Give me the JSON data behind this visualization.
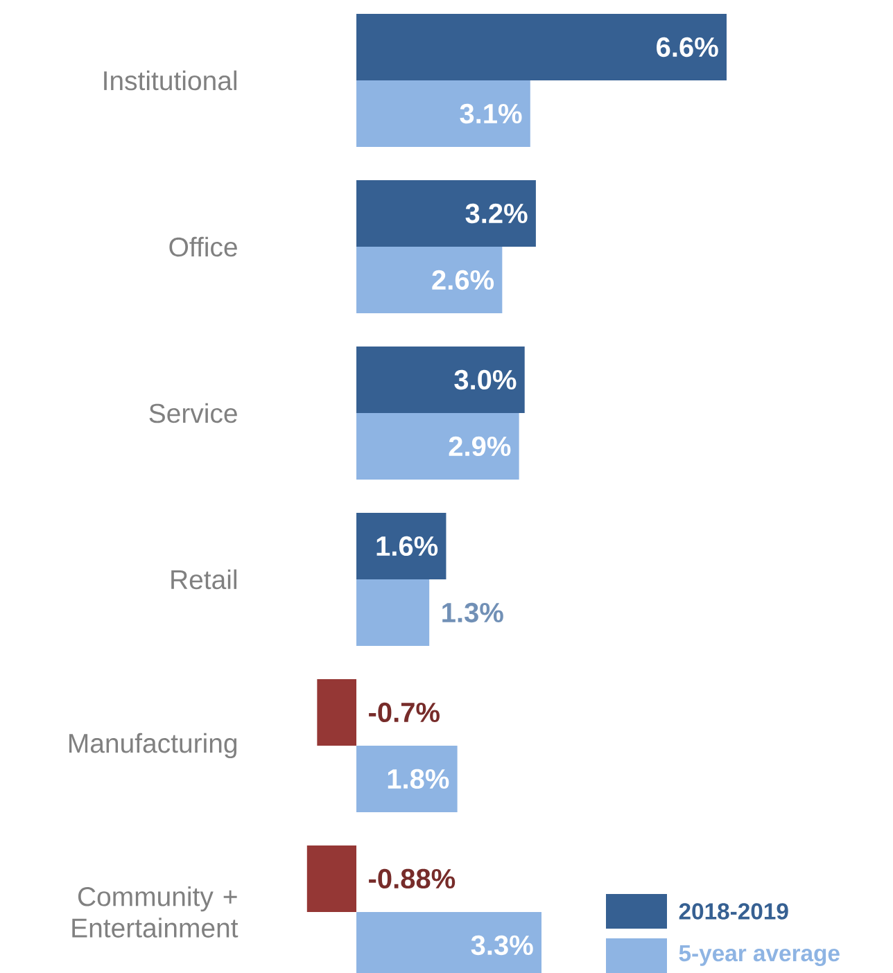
{
  "chart_data": {
    "type": "bar",
    "orientation": "horizontal",
    "categories": [
      "Institutional",
      "Office",
      "Service",
      "Retail",
      "Manufacturing",
      "Community + Entertainment"
    ],
    "series": [
      {
        "name": "2018-2019",
        "color": "#366092",
        "colors": [
          "#366092",
          "#366092",
          "#366092",
          "#366092",
          "#953735",
          "#953735"
        ],
        "values": [
          6.6,
          3.2,
          3.0,
          1.6,
          -0.7,
          -0.88
        ],
        "value_labels": [
          "6.6%",
          "3.2%",
          "3.0%",
          "1.6%",
          "-0.7%",
          "-0.88%"
        ]
      },
      {
        "name": "5-year average",
        "color": "#8eb4e3",
        "values": [
          3.1,
          2.6,
          2.9,
          1.3,
          1.8,
          3.3
        ],
        "value_labels": [
          "3.1%",
          "2.6%",
          "2.9%",
          "1.3%",
          "1.8%",
          "3.3%"
        ]
      }
    ],
    "tick_labels": "y",
    "legend": "bottom right"
  }
}
